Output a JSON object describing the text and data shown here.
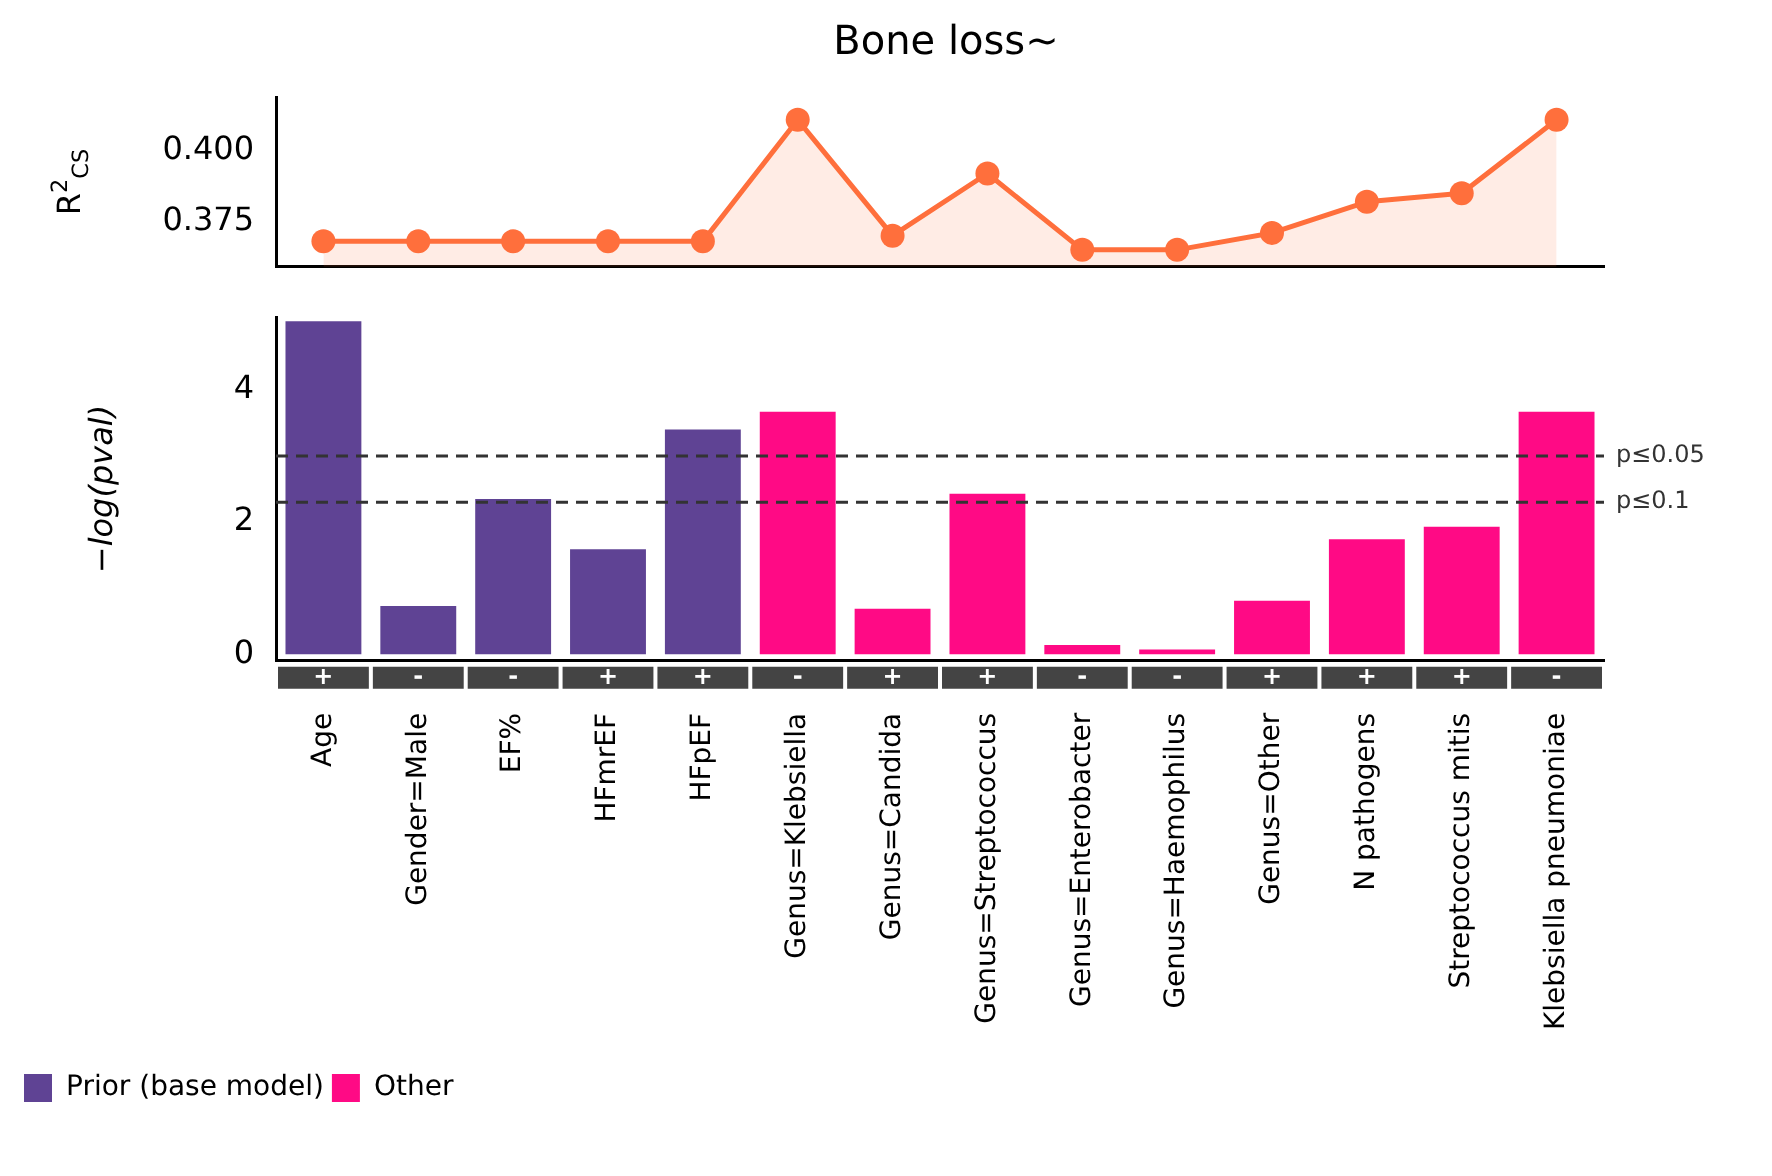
{
  "chart_data": [
    {
      "type": "area",
      "title": "Bone loss~",
      "ylabel": "R$^{2}$$_{CS}$",
      "categories": [
        null,
        null,
        null,
        null,
        null,
        null,
        null,
        null,
        null,
        null,
        null,
        null,
        null,
        null
      ],
      "series": [
        {
          "color": "#ff6f3c",
          "values": [
            0.368,
            0.368,
            0.368,
            0.368,
            0.368,
            0.411,
            0.37,
            0.392,
            0.365,
            0.365,
            0.371,
            0.382,
            0.385,
            0.411
          ]
        }
      ],
      "ylim": [
        0.359,
        0.419
      ],
      "yticks": [
        0.375,
        {
          "value": 0.4,
          "label": "0.400"
        }
      ],
      "tick_labels": "y",
      "grid": false,
      "legend": false,
      "marker": "circle",
      "line_style": "solid"
    },
    {
      "type": "bar",
      "ylabel": "−log(pval)",
      "categories": [
        "Age",
        "Gender=Male",
        "EF%",
        "HFmrEF",
        "HFpEF",
        "Genus=Klebsiella",
        "Genus=Candida",
        "Genus=Streptococcus",
        "Genus=Enterobacter",
        "Genus=Haemophilus",
        "Genus=Other",
        "N pathogens",
        "Streptococcus mitis",
        "Klebsiella pneumoniae"
      ],
      "series": [
        {
          "name": "Prior (base model)",
          "color": "#5f4394",
          "values": [
            5.04,
            0.73,
            2.35,
            1.59,
            3.4,
            null,
            null,
            null,
            null,
            null,
            null,
            null,
            null,
            null
          ]
        },
        {
          "name": "Other",
          "color": "#ff0a85",
          "values": [
            null,
            null,
            null,
            null,
            null,
            3.67,
            0.69,
            2.43,
            0.14,
            0.07,
            0.81,
            1.74,
            1.93,
            3.67
          ]
        }
      ],
      "ylim": [
        -0.1,
        5.1
      ],
      "yticks": [
        0,
        2,
        4
      ],
      "grid": false,
      "legend": "bottom left",
      "ref_lines": [
        {
          "axis": "y",
          "value": 3.0,
          "label": "p≤0.05",
          "line_style": "dashed",
          "color": "#333333"
        },
        {
          "axis": "y",
          "value": 2.3,
          "label": "p≤0.1",
          "line_style": "dashed",
          "color": "#333333"
        }
      ],
      "annotations": [
        "+",
        "-",
        "-",
        "+",
        "+",
        "-",
        "+",
        "+",
        "-",
        "-",
        "+",
        "+",
        "+",
        "-"
      ]
    }
  ]
}
